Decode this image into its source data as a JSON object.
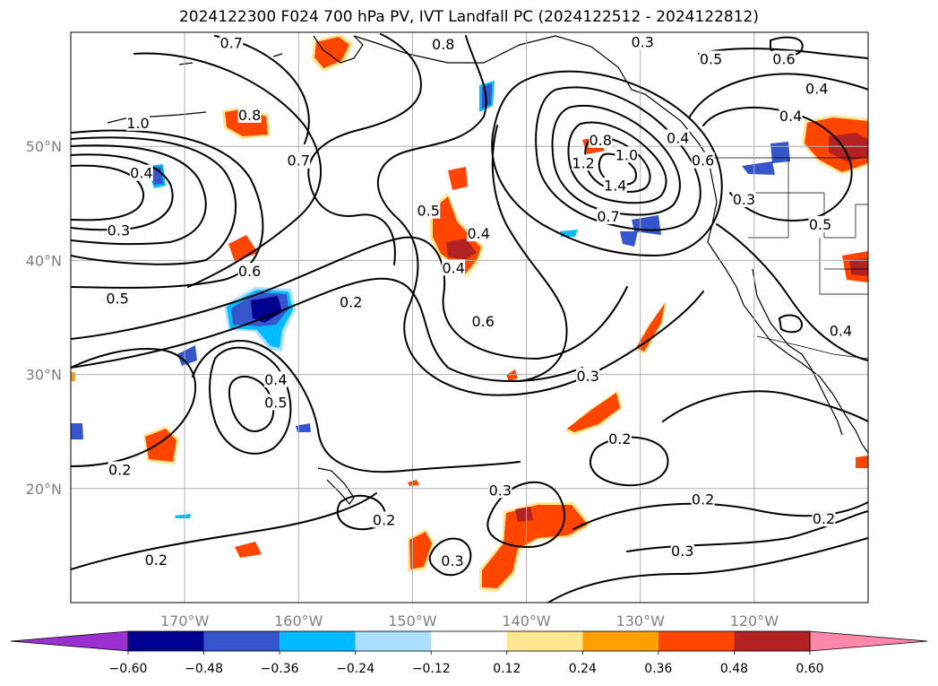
{
  "title": "2024122300 F024 700 hPa PV, IVT Landfall PC (2024122512 - 2024122812)",
  "map": {
    "lon_range": [
      -180,
      -110
    ],
    "lat_range": [
      10,
      60
    ],
    "lon_ticks": [
      {
        "lon": -170,
        "label": "170°W"
      },
      {
        "lon": -160,
        "label": "160°W"
      },
      {
        "lon": -150,
        "label": "150°W"
      },
      {
        "lon": -140,
        "label": "140°W"
      },
      {
        "lon": -130,
        "label": "130°W"
      },
      {
        "lon": -120,
        "label": "120°W"
      }
    ],
    "lat_ticks": [
      {
        "lat": 20,
        "label": "20°N"
      },
      {
        "lat": 30,
        "label": "30°N"
      },
      {
        "lat": 40,
        "label": "40°N"
      },
      {
        "lat": 50,
        "label": "50°N"
      }
    ],
    "grid": true,
    "contour_labels": [
      {
        "text": "0.7",
        "lon": -165.9,
        "lat": 59
      },
      {
        "text": "0.8",
        "lon": -147.3,
        "lat": 58.9
      },
      {
        "text": "0.3",
        "lon": -129.8,
        "lat": 59.1
      },
      {
        "text": "0.5",
        "lon": -123.8,
        "lat": 57.6
      },
      {
        "text": "0.6",
        "lon": -117.4,
        "lat": 57.6
      },
      {
        "text": "0.4",
        "lon": -114.5,
        "lat": 55
      },
      {
        "text": "0.4",
        "lon": -116.8,
        "lat": 52.6
      },
      {
        "text": "1.0",
        "lon": -174.1,
        "lat": 52
      },
      {
        "text": "0.8",
        "lon": -164.3,
        "lat": 52.7
      },
      {
        "text": "0.7",
        "lon": -160,
        "lat": 48.7
      },
      {
        "text": "0.4",
        "lon": -173.8,
        "lat": 47.6
      },
      {
        "text": "0.3",
        "lon": -175.8,
        "lat": 42.6
      },
      {
        "text": "0.5",
        "lon": -148.6,
        "lat": 44.3
      },
      {
        "text": "0.4",
        "lon": -144.2,
        "lat": 42.3
      },
      {
        "text": "0.4",
        "lon": -146.4,
        "lat": 39.3
      },
      {
        "text": "0.8",
        "lon": -133.5,
        "lat": 50.5
      },
      {
        "text": "1.2",
        "lon": -135,
        "lat": 48.5
      },
      {
        "text": "1.0",
        "lon": -131.2,
        "lat": 49.2
      },
      {
        "text": "0.4",
        "lon": -126.7,
        "lat": 50.7
      },
      {
        "text": "0.6",
        "lon": -124.5,
        "lat": 48.7
      },
      {
        "text": "1.4",
        "lon": -132.2,
        "lat": 46.5
      },
      {
        "text": "0.7",
        "lon": -132.8,
        "lat": 43.8
      },
      {
        "text": "0.3",
        "lon": -120.9,
        "lat": 45.3
      },
      {
        "text": "0.5",
        "lon": -114.2,
        "lat": 43.1
      },
      {
        "text": "0.6",
        "lon": -164.3,
        "lat": 39
      },
      {
        "text": "0.5",
        "lon": -175.9,
        "lat": 36.6
      },
      {
        "text": "0.2",
        "lon": -155.4,
        "lat": 36.3
      },
      {
        "text": "0.6",
        "lon": -143.8,
        "lat": 34.6
      },
      {
        "text": "0.4",
        "lon": -112.4,
        "lat": 33.8
      },
      {
        "text": "0.3",
        "lon": -134.6,
        "lat": 29.8
      },
      {
        "text": "0.4",
        "lon": -162,
        "lat": 29.5
      },
      {
        "text": "0.5",
        "lon": -162,
        "lat": 27.5
      },
      {
        "text": "0.2",
        "lon": -175.7,
        "lat": 21.6
      },
      {
        "text": "0.2",
        "lon": -131.8,
        "lat": 24.3
      },
      {
        "text": "0.3",
        "lon": -142.3,
        "lat": 19.8
      },
      {
        "text": "0.2",
        "lon": -124.5,
        "lat": 19
      },
      {
        "text": "0.2",
        "lon": -152.5,
        "lat": 17.2
      },
      {
        "text": "0.2",
        "lon": -113.9,
        "lat": 17.3
      },
      {
        "text": "0.2",
        "lon": -172.5,
        "lat": 13.7
      },
      {
        "text": "0.3",
        "lon": -126.3,
        "lat": 14.5
      },
      {
        "text": "0.3",
        "lon": -146.5,
        "lat": 13.6
      }
    ]
  },
  "colorbar": {
    "levels": [
      -0.6,
      -0.48,
      -0.36,
      -0.24,
      -0.12,
      0.12,
      0.24,
      0.36,
      0.48,
      0.6
    ],
    "labels": [
      "−0.60",
      "−0.48",
      "−0.36",
      "−0.24",
      "−0.12",
      "0.12",
      "0.24",
      "0.36",
      "0.48",
      "0.60"
    ],
    "under_color": "#9b30d0",
    "over_color": "#ff88aa",
    "colors": [
      "#000090",
      "#3455cc",
      "#00bbff",
      "#aadfff",
      "#ffffff",
      "#ffe690",
      "#ffa000",
      "#ff4500",
      "#b22222"
    ]
  }
}
